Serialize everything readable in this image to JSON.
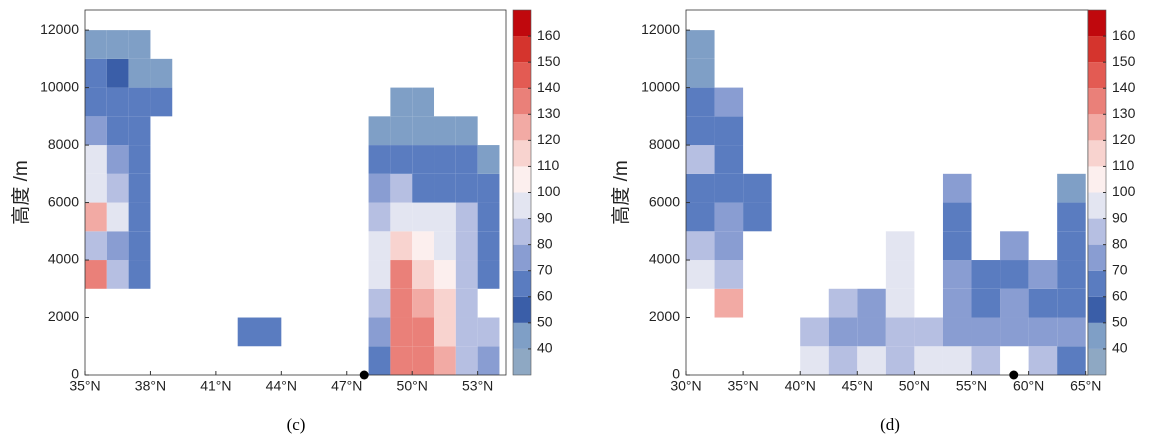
{
  "chart_data": [
    {
      "type": "heatmap",
      "caption": "(c)",
      "ylabel": "高度 /m",
      "xlim": [
        35,
        54.3
      ],
      "ylim": [
        0,
        12700
      ],
      "xticks": [
        {
          "value": 35,
          "label": "35°N"
        },
        {
          "value": 38,
          "label": "38°N"
        },
        {
          "value": 41,
          "label": "41°N"
        },
        {
          "value": 44,
          "label": "44°N"
        },
        {
          "value": 47,
          "label": "47°N"
        },
        {
          "value": 50,
          "label": "50°N"
        },
        {
          "value": 53,
          "label": "53°N"
        }
      ],
      "yticks": [
        0,
        2000,
        4000,
        6000,
        8000,
        10000,
        12000
      ],
      "x_edges": [
        35,
        36,
        37,
        38,
        39,
        40,
        41,
        42,
        43,
        44,
        45,
        46,
        47,
        48,
        49,
        50,
        51,
        52,
        53,
        54
      ],
      "y_edges": [
        0,
        1000,
        2000,
        3000,
        4000,
        5000,
        6000,
        7000,
        8000,
        9000,
        10000,
        11000,
        12000
      ],
      "values": [
        [
          null,
          null,
          null,
          null,
          null,
          null,
          null,
          null,
          null,
          null,
          null,
          null,
          null,
          60,
          130,
          130,
          120,
          80,
          70
        ],
        [
          null,
          null,
          null,
          null,
          null,
          null,
          null,
          60,
          60,
          null,
          null,
          null,
          null,
          70,
          130,
          130,
          110,
          80,
          80
        ],
        [
          null,
          null,
          null,
          null,
          null,
          null,
          null,
          null,
          null,
          null,
          null,
          null,
          null,
          80,
          130,
          120,
          110,
          80,
          null
        ],
        [
          130,
          80,
          60,
          null,
          null,
          null,
          null,
          null,
          null,
          null,
          null,
          null,
          null,
          90,
          130,
          110,
          100,
          80,
          60
        ],
        [
          80,
          70,
          60,
          null,
          null,
          null,
          null,
          null,
          null,
          null,
          null,
          null,
          null,
          90,
          110,
          100,
          90,
          80,
          60
        ],
        [
          120,
          90,
          60,
          null,
          null,
          null,
          null,
          null,
          null,
          null,
          null,
          null,
          null,
          80,
          90,
          90,
          90,
          80,
          60
        ],
        [
          90,
          80,
          60,
          null,
          null,
          null,
          null,
          null,
          null,
          null,
          null,
          null,
          null,
          70,
          80,
          60,
          60,
          60,
          60
        ],
        [
          90,
          70,
          60,
          null,
          null,
          null,
          null,
          null,
          null,
          null,
          null,
          null,
          null,
          60,
          60,
          60,
          60,
          60,
          40
        ],
        [
          70,
          60,
          60,
          null,
          null,
          null,
          null,
          null,
          null,
          null,
          null,
          null,
          null,
          40,
          40,
          40,
          40,
          40,
          null
        ],
        [
          60,
          60,
          60,
          60,
          null,
          null,
          null,
          null,
          null,
          null,
          null,
          null,
          null,
          null,
          40,
          40,
          null,
          null,
          null
        ],
        [
          60,
          50,
          40,
          40,
          null,
          null,
          null,
          null,
          null,
          null,
          null,
          null,
          null,
          null,
          null,
          null,
          null,
          null,
          null
        ],
        [
          40,
          40,
          40,
          null,
          null,
          null,
          null,
          null,
          null,
          null,
          null,
          null,
          null,
          null,
          null,
          null,
          null,
          null,
          null
        ]
      ],
      "marker_x": 47.8,
      "colorbar": {
        "levels": [
          30,
          40,
          50,
          60,
          70,
          80,
          90,
          100,
          110,
          120,
          130,
          140,
          150,
          160,
          170
        ],
        "colors": [
          "#8ea8c3",
          "#7f9fc6",
          "#3a5ea8",
          "#5a7cc0",
          "#899dd2",
          "#b6bfe2",
          "#e3e5f1",
          "#fcefee",
          "#f8d3cf",
          "#f2aaa4",
          "#ea8079",
          "#e35b53",
          "#d5342d",
          "#c0080d"
        ],
        "ticks": [
          40,
          50,
          60,
          70,
          80,
          90,
          100,
          110,
          120,
          130,
          140,
          150,
          160
        ]
      }
    },
    {
      "type": "heatmap",
      "caption": "(d)",
      "ylabel": "高度 /m",
      "xlim": [
        30,
        65.2
      ],
      "ylim": [
        0,
        12700
      ],
      "xticks": [
        {
          "value": 30,
          "label": "30°N"
        },
        {
          "value": 35,
          "label": "35°N"
        },
        {
          "value": 40,
          "label": "40°N"
        },
        {
          "value": 45,
          "label": "45°N"
        },
        {
          "value": 50,
          "label": "50°N"
        },
        {
          "value": 55,
          "label": "55°N"
        },
        {
          "value": 60,
          "label": "60°N"
        },
        {
          "value": 65,
          "label": "65°N"
        }
      ],
      "yticks": [
        0,
        2000,
        4000,
        6000,
        8000,
        10000,
        12000
      ],
      "x_edges": [
        30,
        32.5,
        35,
        37.5,
        40,
        42.5,
        45,
        47.5,
        50,
        52.5,
        55,
        57.5,
        60,
        62.5,
        65
      ],
      "y_edges": [
        0,
        1000,
        2000,
        3000,
        4000,
        5000,
        6000,
        7000,
        8000,
        9000,
        10000,
        11000,
        12000
      ],
      "values": [
        [
          null,
          null,
          null,
          null,
          90,
          80,
          90,
          80,
          90,
          90,
          80,
          null,
          80,
          60
        ],
        [
          null,
          null,
          null,
          null,
          80,
          70,
          70,
          80,
          80,
          70,
          70,
          70,
          70,
          70
        ],
        [
          null,
          120,
          null,
          null,
          null,
          80,
          70,
          90,
          null,
          70,
          60,
          70,
          60,
          60
        ],
        [
          90,
          80,
          null,
          null,
          null,
          null,
          null,
          90,
          null,
          70,
          60,
          60,
          70,
          60
        ],
        [
          80,
          70,
          null,
          null,
          null,
          null,
          null,
          90,
          null,
          60,
          null,
          70,
          null,
          60
        ],
        [
          60,
          70,
          60,
          null,
          null,
          null,
          null,
          null,
          null,
          60,
          null,
          null,
          null,
          60
        ],
        [
          60,
          60,
          60,
          null,
          null,
          null,
          null,
          null,
          null,
          70,
          null,
          null,
          null,
          40
        ],
        [
          80,
          60,
          null,
          null,
          null,
          null,
          null,
          null,
          null,
          null,
          null,
          null,
          null,
          null
        ],
        [
          60,
          60,
          null,
          null,
          null,
          null,
          null,
          null,
          null,
          null,
          null,
          null,
          null,
          null
        ],
        [
          60,
          70,
          null,
          null,
          null,
          null,
          null,
          null,
          null,
          null,
          null,
          null,
          null,
          null
        ],
        [
          40,
          null,
          null,
          null,
          null,
          null,
          null,
          null,
          null,
          null,
          null,
          null,
          null,
          null
        ],
        [
          40,
          null,
          null,
          null,
          null,
          null,
          null,
          null,
          null,
          null,
          null,
          null,
          null,
          null
        ]
      ],
      "marker_x": 58.7,
      "colorbar": {
        "levels": [
          30,
          40,
          50,
          60,
          70,
          80,
          90,
          100,
          110,
          120,
          130,
          140,
          150,
          160,
          170
        ],
        "colors": [
          "#8ea8c3",
          "#7f9fc6",
          "#3a5ea8",
          "#5a7cc0",
          "#899dd2",
          "#b6bfe2",
          "#e3e5f1",
          "#fcefee",
          "#f8d3cf",
          "#f2aaa4",
          "#ea8079",
          "#e35b53",
          "#d5342d",
          "#c0080d"
        ],
        "ticks": [
          40,
          50,
          60,
          70,
          80,
          90,
          100,
          110,
          120,
          130,
          140,
          150,
          160
        ]
      }
    }
  ]
}
